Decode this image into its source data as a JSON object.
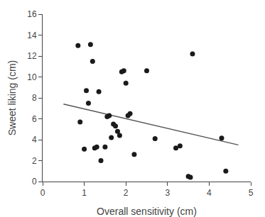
{
  "chart_data": {
    "type": "scatter",
    "xlabel": "Overall sensitivity (cm)",
    "ylabel": "Sweet liking (cm)",
    "series": [
      {
        "type": "scatter",
        "color": "#1a1a1a",
        "x": [
          0.85,
          0.9,
          1.0,
          1.05,
          1.1,
          1.15,
          1.2,
          1.25,
          1.3,
          1.35,
          1.4,
          1.5,
          1.55,
          1.6,
          1.65,
          1.7,
          1.75,
          1.8,
          1.85,
          1.9,
          1.95,
          2.0,
          2.05,
          2.1,
          2.2,
          2.5,
          2.7,
          3.2,
          3.3,
          3.5,
          3.55,
          3.6,
          4.3,
          4.4
        ],
        "values": [
          13.0,
          5.7,
          3.1,
          8.7,
          7.5,
          13.1,
          11.5,
          3.2,
          3.3,
          8.6,
          2.0,
          3.3,
          6.2,
          6.3,
          4.2,
          5.5,
          5.3,
          4.8,
          4.4,
          10.5,
          10.6,
          9.4,
          6.3,
          6.5,
          2.6,
          10.6,
          4.1,
          3.2,
          3.4,
          0.5,
          0.4,
          12.2,
          4.15,
          1.0
        ]
      },
      {
        "type": "line",
        "color": "#555555",
        "x": [
          0.5,
          4.7
        ],
        "values": [
          7.4,
          3.5
        ]
      }
    ],
    "xlim": [
      0,
      5
    ],
    "ylim": [
      0,
      16
    ],
    "xticks": [
      0,
      1,
      2,
      3,
      4,
      5
    ],
    "yticks": [
      0,
      2,
      4,
      6,
      8,
      10,
      12,
      14,
      16
    ],
    "grid": false
  }
}
